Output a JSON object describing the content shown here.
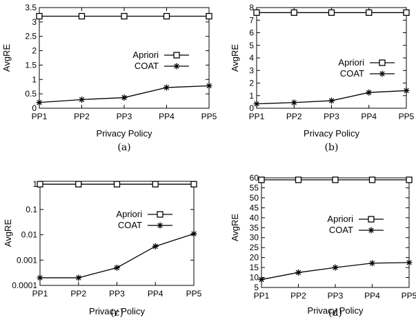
{
  "chart_data": [
    {
      "type": "line",
      "caption": "(a)",
      "categories": [
        "PP1",
        "PP2",
        "PP3",
        "PP4",
        "PP5"
      ],
      "xlabel": "Privacy Policy",
      "ylabel": "AvgRE",
      "ylim": [
        0,
        3.5
      ],
      "yscale": "linear",
      "yticks": [
        0,
        0.5,
        1,
        1.5,
        2,
        2.5,
        3,
        3.5
      ],
      "ytick_labels": [
        "0",
        "0.5",
        "1",
        "1.5",
        "2",
        "2.5",
        "3",
        "3.5"
      ],
      "legend_position": "center",
      "grid": false,
      "series": [
        {
          "name": "Apriori",
          "marker": "square",
          "values": [
            3.2,
            3.2,
            3.2,
            3.2,
            3.2
          ]
        },
        {
          "name": "COAT",
          "marker": "star",
          "values": [
            0.2,
            0.3,
            0.37,
            0.72,
            0.78
          ]
        }
      ]
    },
    {
      "type": "line",
      "caption": "(b)",
      "categories": [
        "PP1",
        "PP2",
        "PP3",
        "PP4",
        "PP5"
      ],
      "xlabel": "Privacy Policy",
      "ylabel": "AvgRE",
      "ylim": [
        0,
        8
      ],
      "yscale": "linear",
      "yticks": [
        0,
        1,
        2,
        3,
        4,
        5,
        6,
        7,
        8
      ],
      "ytick_labels": [
        "0",
        "1",
        "2",
        "3",
        "4",
        "5",
        "6",
        "7",
        "8"
      ],
      "legend_position": "center",
      "grid": false,
      "series": [
        {
          "name": "Apriori",
          "marker": "square",
          "values": [
            7.6,
            7.6,
            7.6,
            7.6,
            7.6
          ]
        },
        {
          "name": "COAT",
          "marker": "star",
          "values": [
            0.35,
            0.45,
            0.6,
            1.25,
            1.4
          ]
        }
      ]
    },
    {
      "type": "line",
      "caption": "(c)",
      "categories": [
        "PP1",
        "PP2",
        "PP3",
        "PP4",
        "PP5"
      ],
      "xlabel": "Privacy Policy",
      "ylabel": "AvgRE",
      "ylim": [
        0.0001,
        1.3
      ],
      "yscale": "log",
      "yticks": [
        0.0001,
        0.001,
        0.01,
        0.1,
        1
      ],
      "ytick_labels": [
        "0.0001",
        "0.001",
        "0.01",
        "0.1",
        "1"
      ],
      "legend_position": "center",
      "grid": false,
      "series": [
        {
          "name": "Apriori",
          "marker": "square",
          "values": [
            1,
            1,
            1,
            1,
            1
          ]
        },
        {
          "name": "COAT",
          "marker": "star",
          "values": [
            0.0002,
            0.0002,
            0.0005,
            0.0035,
            0.011
          ]
        }
      ]
    },
    {
      "type": "line",
      "caption": "(d)",
      "categories": [
        "PP1",
        "PP2",
        "PP3",
        "PP4",
        "PP5"
      ],
      "xlabel": "Privacy Policy",
      "ylabel": "AvgRE",
      "ylim": [
        5,
        60
      ],
      "yscale": "linear",
      "yticks": [
        5,
        10,
        15,
        20,
        25,
        30,
        35,
        40,
        45,
        50,
        55,
        60
      ],
      "ytick_labels": [
        "5",
        "10",
        "15",
        "20",
        "25",
        "30",
        "35",
        "40",
        "45",
        "50",
        "55",
        "60"
      ],
      "legend_position": "center",
      "grid": false,
      "series": [
        {
          "name": "Apriori",
          "marker": "square",
          "values": [
            59,
            59,
            59,
            59,
            59
          ]
        },
        {
          "name": "COAT",
          "marker": "star",
          "values": [
            9,
            12.5,
            15,
            17.2,
            17.5
          ]
        }
      ]
    }
  ]
}
